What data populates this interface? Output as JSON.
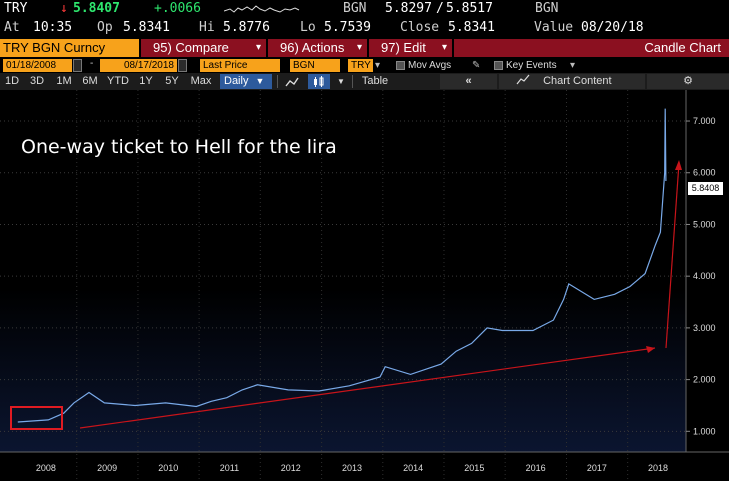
{
  "ticker": {
    "symbol": "TRY",
    "arrow": "↓",
    "last": "5.8407",
    "change": "+.0066",
    "source": "BGN",
    "bid": "5.8297",
    "slash": "/",
    "ask": "5.8517",
    "source2": "BGN"
  },
  "quote": {
    "at_label": "At",
    "time": "10:35",
    "open_label": "Op",
    "open": "5.8341",
    "high_label": "Hi",
    "high": "5.8776",
    "low_label": "Lo",
    "low": "5.7539",
    "close_label": "Close",
    "close": "5.8341",
    "value_label": "Value",
    "value": "08/20/18"
  },
  "menu": {
    "security": "TRY BGN Curncy",
    "compare_num": "95)",
    "compare": "Compare",
    "actions_num": "96)",
    "actions": "Actions",
    "edit_num": "97)",
    "edit": "Edit",
    "chart_type": "Candle Chart"
  },
  "params": {
    "start_date": "01/18/2008",
    "dash": "-",
    "end_date": "08/17/2018",
    "field": "Last Price",
    "source": "BGN",
    "currency": "TRY",
    "mov_avgs": "Mov Avgs",
    "key_events": "Key Events"
  },
  "toolbar": {
    "periods": [
      "1D",
      "3D",
      "1M",
      "6M",
      "YTD",
      "1Y",
      "5Y",
      "Max"
    ],
    "frequency": "Daily",
    "frequency_arrow": "▼",
    "table": "Table",
    "collapse": "«",
    "chart_content": "Chart Content",
    "gear": "⚙"
  },
  "annotation": "One-way ticket to Hell for the lira",
  "price_flag": "5.8408",
  "chart_data": {
    "type": "line",
    "x": [
      "2008-01",
      "2008-07",
      "2008-10",
      "2008-12",
      "2009-03",
      "2009-06",
      "2009-12",
      "2010-06",
      "2010-12",
      "2011-03",
      "2011-06",
      "2011-09",
      "2011-12",
      "2012-06",
      "2012-12",
      "2013-06",
      "2013-12",
      "2014-01",
      "2014-06",
      "2014-12",
      "2015-03",
      "2015-06",
      "2015-09",
      "2015-12",
      "2016-06",
      "2016-10",
      "2016-12",
      "2017-01",
      "2017-06",
      "2017-10",
      "2018-01",
      "2018-04",
      "2018-06",
      "2018-07",
      "2018-08-10",
      "2018-08-13",
      "2018-08-17"
    ],
    "y": [
      1.18,
      1.22,
      1.35,
      1.55,
      1.75,
      1.55,
      1.5,
      1.55,
      1.48,
      1.58,
      1.65,
      1.8,
      1.9,
      1.8,
      1.78,
      1.88,
      2.05,
      2.25,
      2.1,
      2.3,
      2.55,
      2.7,
      3.0,
      2.95,
      2.95,
      3.15,
      3.55,
      3.85,
      3.55,
      3.65,
      3.8,
      4.05,
      4.6,
      4.85,
      6.0,
      7.24,
      5.84
    ],
    "ylim": [
      0.6,
      7.6
    ],
    "yticks": [
      "1.000",
      "2.000",
      "3.000",
      "4.000",
      "5.000",
      "6.000",
      "7.000"
    ],
    "xticks": [
      "2008",
      "2009",
      "2010",
      "2011",
      "2012",
      "2013",
      "2014",
      "2015",
      "2016",
      "2017",
      "2018"
    ],
    "line_color": "#79a9e8",
    "overlay_color": "#d0141a",
    "grid": true
  },
  "colors": {
    "accent": "#f7a21b",
    "menu_bg": "#8b1020",
    "selected": "#2d5a9c",
    "up": "#2ee66e",
    "down": "#ff3b3b"
  }
}
